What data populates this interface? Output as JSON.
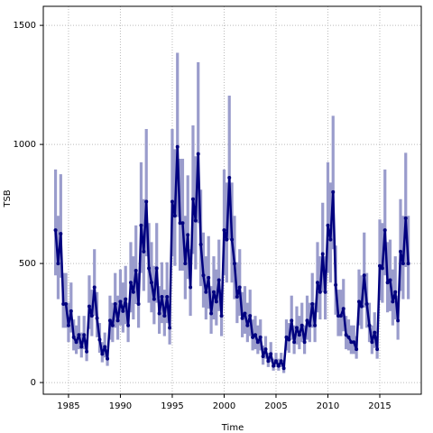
{
  "chart_data": {
    "type": "line",
    "xlabel": "Time",
    "ylabel": "TSB",
    "line_color": "#00007f",
    "band_color": "#9a9ccc",
    "grid": true,
    "xlim": [
      1982.57,
      2019
    ],
    "ylim": [
      -49,
      1580
    ],
    "xticks": [
      1985,
      1990,
      1995,
      2000,
      2005,
      2010,
      2015
    ],
    "yticks": [
      0,
      500,
      1000,
      1500
    ],
    "x": [
      1983.75,
      1984,
      1984.25,
      1984.5,
      1984.75,
      1985,
      1985.25,
      1985.5,
      1985.75,
      1986,
      1986.25,
      1986.5,
      1986.75,
      1987,
      1987.25,
      1987.5,
      1987.75,
      1988,
      1988.25,
      1988.5,
      1988.75,
      1989,
      1989.25,
      1989.5,
      1989.75,
      1990,
      1990.25,
      1990.5,
      1990.75,
      1991,
      1991.25,
      1991.5,
      1991.75,
      1992,
      1992.25,
      1992.5,
      1992.75,
      1993,
      1993.25,
      1993.5,
      1993.75,
      1994,
      1994.25,
      1994.5,
      1994.75,
      1995,
      1995.25,
      1995.5,
      1995.75,
      1996,
      1996.25,
      1996.5,
      1996.75,
      1997,
      1997.25,
      1997.5,
      1997.75,
      1998,
      1998.25,
      1998.5,
      1998.75,
      1999,
      1999.25,
      1999.5,
      1999.75,
      2000,
      2000.25,
      2000.5,
      2000.75,
      2001,
      2001.25,
      2001.5,
      2001.75,
      2002,
      2002.25,
      2002.5,
      2002.75,
      2003,
      2003.25,
      2003.5,
      2003.75,
      2004,
      2004.25,
      2004.5,
      2004.75,
      2005,
      2005.25,
      2005.5,
      2005.75,
      2006,
      2006.25,
      2006.5,
      2006.75,
      2007,
      2007.25,
      2007.5,
      2007.75,
      2008,
      2008.25,
      2008.5,
      2008.75,
      2009,
      2009.25,
      2009.5,
      2009.75,
      2010,
      2010.25,
      2010.5,
      2010.75,
      2011,
      2011.25,
      2011.5,
      2011.75,
      2012,
      2012.25,
      2012.5,
      2012.75,
      2013,
      2013.25,
      2013.5,
      2013.75,
      2014,
      2014.25,
      2014.5,
      2014.75,
      2015,
      2015.25,
      2015.5,
      2015.75,
      2016,
      2016.25,
      2016.5,
      2016.75,
      2017,
      2017.25,
      2017.5,
      2017.75
    ],
    "values": [
      640,
      500,
      625,
      330,
      330,
      240,
      300,
      190,
      170,
      200,
      150,
      200,
      130,
      320,
      280,
      400,
      270,
      180,
      120,
      150,
      100,
      260,
      240,
      330,
      260,
      340,
      300,
      350,
      240,
      420,
      380,
      470,
      330,
      660,
      550,
      760,
      480,
      420,
      350,
      480,
      290,
      360,
      280,
      360,
      230,
      760,
      700,
      990,
      670,
      670,
      500,
      620,
      400,
      770,
      680,
      960,
      580,
      450,
      380,
      440,
      290,
      380,
      340,
      430,
      280,
      640,
      600,
      860,
      600,
      500,
      360,
      400,
      270,
      290,
      240,
      280,
      190,
      200,
      170,
      190,
      110,
      140,
      90,
      120,
      70,
      90,
      70,
      90,
      60,
      190,
      180,
      260,
      170,
      230,
      200,
      240,
      170,
      260,
      240,
      330,
      240,
      420,
      380,
      540,
      380,
      660,
      600,
      800,
      410,
      280,
      280,
      310,
      200,
      190,
      170,
      170,
      140,
      340,
      320,
      450,
      330,
      240,
      170,
      210,
      140,
      490,
      480,
      640,
      420,
      430,
      340,
      380,
      260,
      550,
      500,
      690,
      500
    ],
    "lower": [
      450,
      350,
      440,
      230,
      230,
      170,
      210,
      135,
      120,
      140,
      105,
      140,
      90,
      225,
      195,
      280,
      190,
      125,
      85,
      105,
      70,
      180,
      170,
      230,
      180,
      240,
      210,
      245,
      170,
      295,
      265,
      330,
      230,
      460,
      385,
      530,
      335,
      295,
      245,
      335,
      205,
      250,
      195,
      250,
      160,
      530,
      490,
      695,
      470,
      470,
      350,
      435,
      280,
      540,
      475,
      670,
      405,
      315,
      265,
      310,
      205,
      265,
      240,
      300,
      195,
      450,
      420,
      600,
      420,
      350,
      250,
      280,
      190,
      205,
      170,
      195,
      135,
      140,
      120,
      135,
      75,
      100,
      65,
      85,
      50,
      65,
      50,
      65,
      40,
      135,
      125,
      180,
      120,
      160,
      140,
      170,
      120,
      180,
      170,
      230,
      170,
      295,
      265,
      380,
      265,
      460,
      420,
      560,
      285,
      195,
      195,
      215,
      140,
      135,
      120,
      120,
      100,
      240,
      225,
      315,
      230,
      170,
      120,
      145,
      100,
      345,
      335,
      450,
      295,
      300,
      240,
      265,
      180,
      385,
      350,
      485,
      350
    ],
    "upper": [
      895,
      700,
      875,
      460,
      460,
      335,
      420,
      265,
      240,
      280,
      210,
      280,
      180,
      450,
      390,
      560,
      380,
      250,
      170,
      210,
      140,
      365,
      335,
      460,
      365,
      475,
      420,
      490,
      335,
      590,
      530,
      660,
      460,
      925,
      770,
      1065,
      670,
      590,
      490,
      670,
      405,
      505,
      390,
      505,
      320,
      1065,
      980,
      1385,
      940,
      940,
      700,
      870,
      560,
      1080,
      950,
      1345,
      810,
      630,
      530,
      615,
      405,
      530,
      475,
      600,
      390,
      895,
      840,
      1205,
      840,
      700,
      505,
      560,
      380,
      405,
      335,
      390,
      265,
      280,
      240,
      265,
      155,
      195,
      125,
      170,
      100,
      125,
      100,
      125,
      85,
      265,
      250,
      365,
      240,
      320,
      280,
      335,
      240,
      365,
      335,
      460,
      335,
      590,
      530,
      755,
      530,
      925,
      840,
      1120,
      575,
      390,
      390,
      435,
      280,
      265,
      240,
      240,
      195,
      475,
      450,
      630,
      460,
      335,
      240,
      295,
      195,
      685,
      670,
      895,
      590,
      600,
      475,
      530,
      365,
      770,
      700,
      965,
      700
    ]
  }
}
